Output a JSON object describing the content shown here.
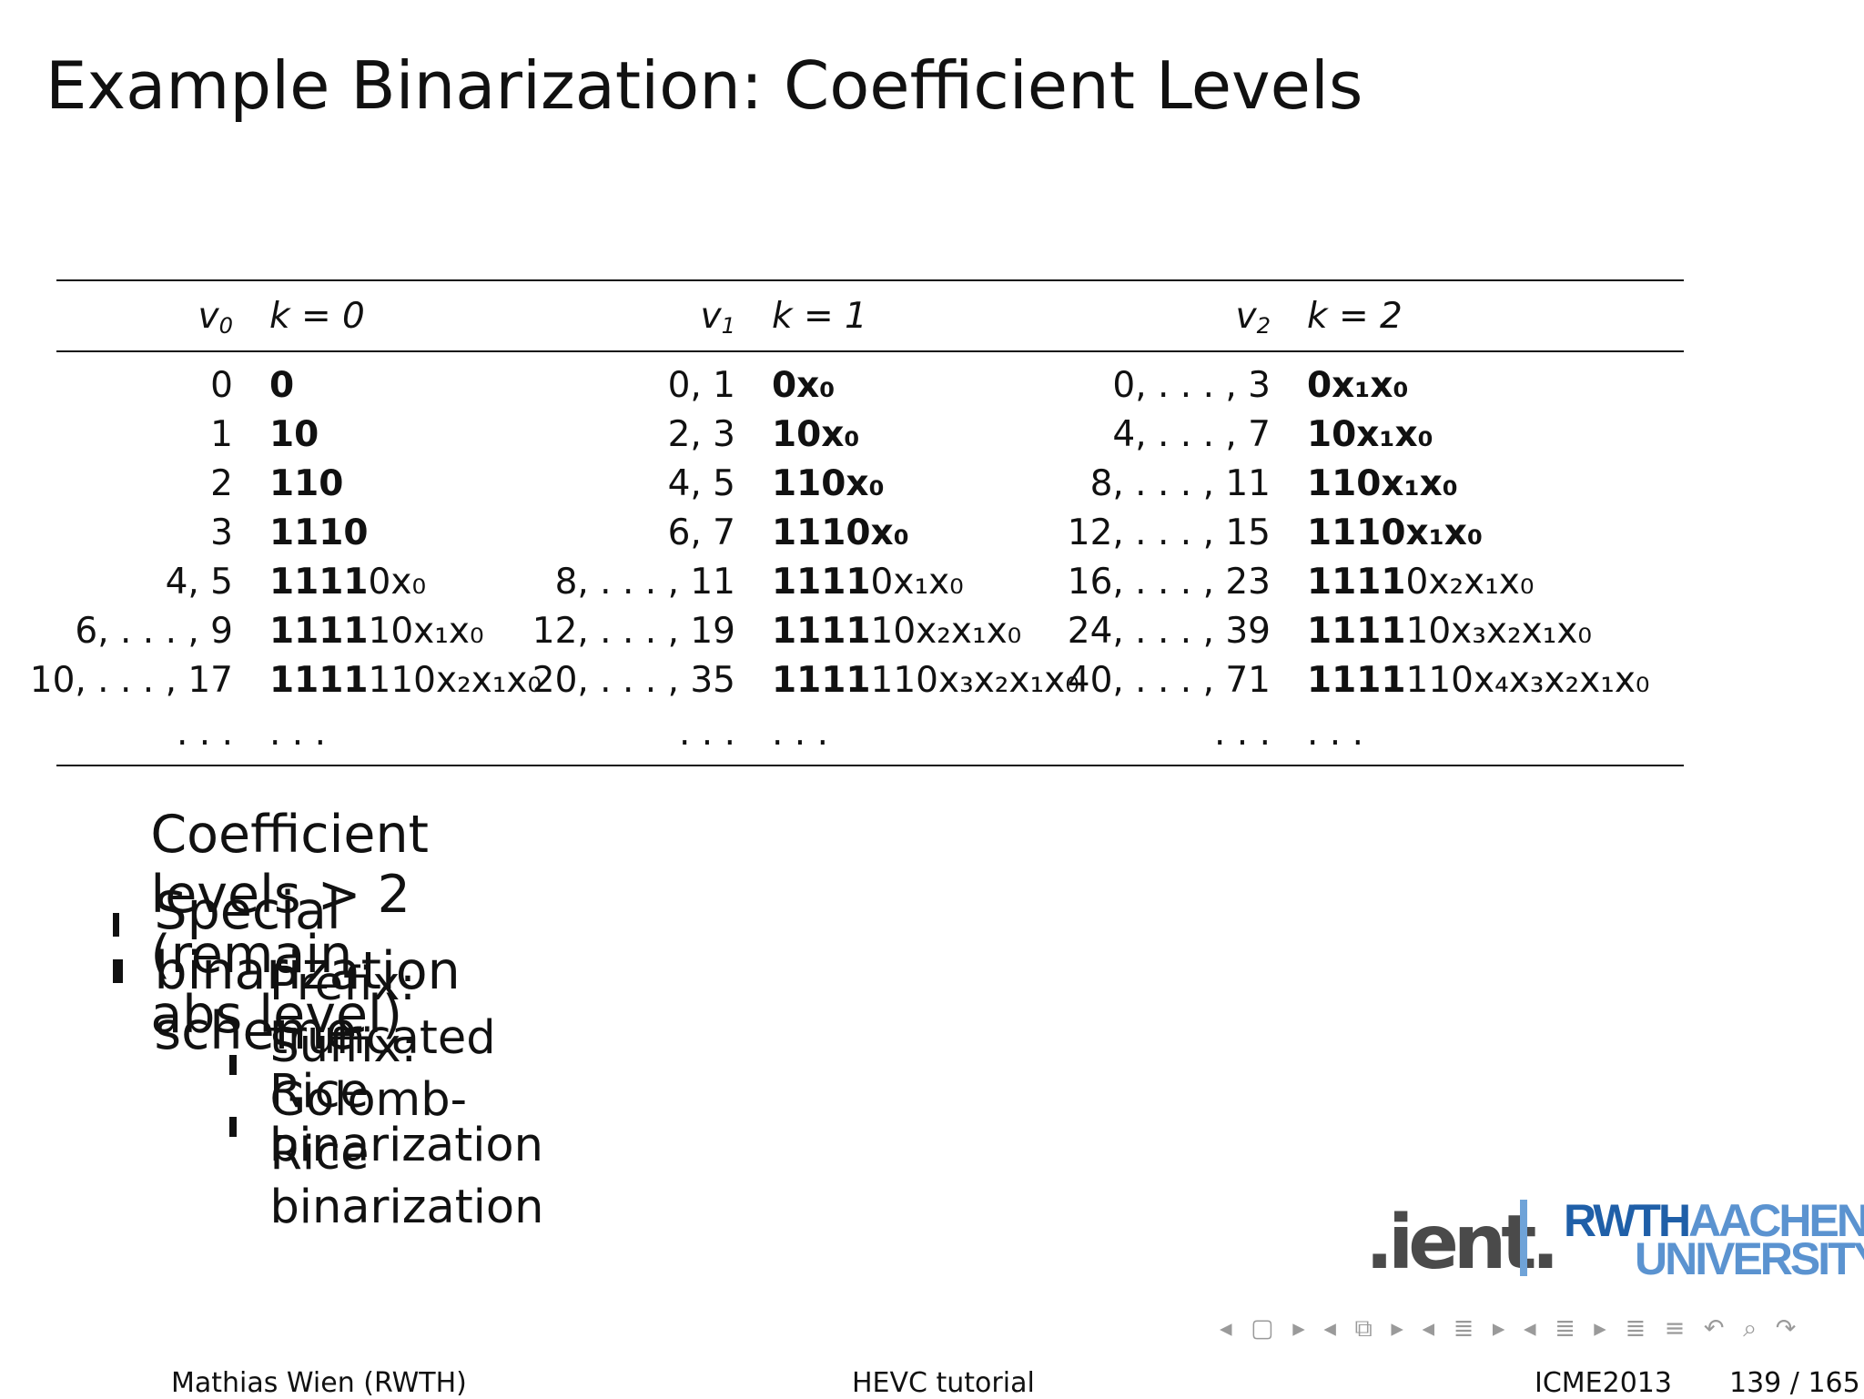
{
  "slide": {
    "title": "Example Binarization: Coefficient Levels"
  },
  "table": {
    "headers": [
      {
        "v_sym": "v",
        "v_sub": "0",
        "k_label": "k = 0"
      },
      {
        "v_sym": "v",
        "v_sub": "1",
        "k_label": "k = 1"
      },
      {
        "v_sym": "v",
        "v_sub": "2",
        "k_label": "k = 2"
      }
    ],
    "rows": [
      [
        {
          "v": "0",
          "bold": "0",
          "plain": ""
        },
        {
          "v": "0, 1",
          "bold": "0x₀",
          "plain": ""
        },
        {
          "v": "0, . . . , 3",
          "bold": "0x₁x₀",
          "plain": ""
        }
      ],
      [
        {
          "v": "1",
          "bold": "10",
          "plain": ""
        },
        {
          "v": "2, 3",
          "bold": "10x₀",
          "plain": ""
        },
        {
          "v": "4, . . . , 7",
          "bold": "10x₁x₀",
          "plain": ""
        }
      ],
      [
        {
          "v": "2",
          "bold": "110",
          "plain": ""
        },
        {
          "v": "4, 5",
          "bold": "110x₀",
          "plain": ""
        },
        {
          "v": "8, . . . , 11",
          "bold": "110x₁x₀",
          "plain": ""
        }
      ],
      [
        {
          "v": "3",
          "bold": "1110",
          "plain": ""
        },
        {
          "v": "6, 7",
          "bold": "1110x₀",
          "plain": ""
        },
        {
          "v": "12, . . . , 15",
          "bold": "1110x₁x₀",
          "plain": ""
        }
      ],
      [
        {
          "v": "4, 5",
          "bold": "1111",
          "plain": "0x₀"
        },
        {
          "v": "8, . . . , 11",
          "bold": "1111",
          "plain": "0x₁x₀"
        },
        {
          "v": "16, . . . , 23",
          "bold": "1111",
          "plain": "0x₂x₁x₀"
        }
      ],
      [
        {
          "v": "6, . . . , 9",
          "bold": "1111",
          "plain": "10x₁x₀"
        },
        {
          "v": "12, . . . , 19",
          "bold": "1111",
          "plain": "10x₂x₁x₀"
        },
        {
          "v": "24, . . . , 39",
          "bold": "1111",
          "plain": "10x₃x₂x₁x₀"
        }
      ],
      [
        {
          "v": "10, . . . , 17",
          "bold": "1111",
          "plain": "110x₂x₁x₀"
        },
        {
          "v": "20, . . . , 35",
          "bold": "1111",
          "plain": "110x₃x₂x₁x₀"
        },
        {
          "v": "40, . . . , 71",
          "bold": "1111",
          "plain": "110x₄x₃x₂x₁x₀"
        }
      ],
      [
        {
          "v": ". . .",
          "bold": "",
          "plain": ". . ."
        },
        {
          "v": ". . .",
          "bold": "",
          "plain": ". . ."
        },
        {
          "v": ". . .",
          "bold": "",
          "plain": ". . ."
        }
      ]
    ]
  },
  "bullets": [
    {
      "level": 1,
      "text": "Coefficient levels > 2 (remain abs level)"
    },
    {
      "level": 1,
      "text": "Special binarization scheme"
    },
    {
      "level": 2,
      "text": "Prefix: truncated Rice binarization"
    },
    {
      "level": 2,
      "text": "Suffix: Golomb-Rice binarization"
    }
  ],
  "logos": {
    "institute": ".ient.",
    "university_line1_bold": "RWTH",
    "university_line1_light": "AACHEN",
    "university_line2": "UNIVERSITY"
  },
  "navigation": {
    "symbols": "◂ ▢ ▸ ◂ ⧉ ▸ ◂ ≣ ▸ ◂ ≣ ▸ ≣ ≡ ↶ ⌕ ↷"
  },
  "footer": {
    "author": "Mathias Wien  (RWTH)",
    "center": "HEVC tutorial",
    "event": "ICME2013",
    "page": "139 / 165"
  }
}
